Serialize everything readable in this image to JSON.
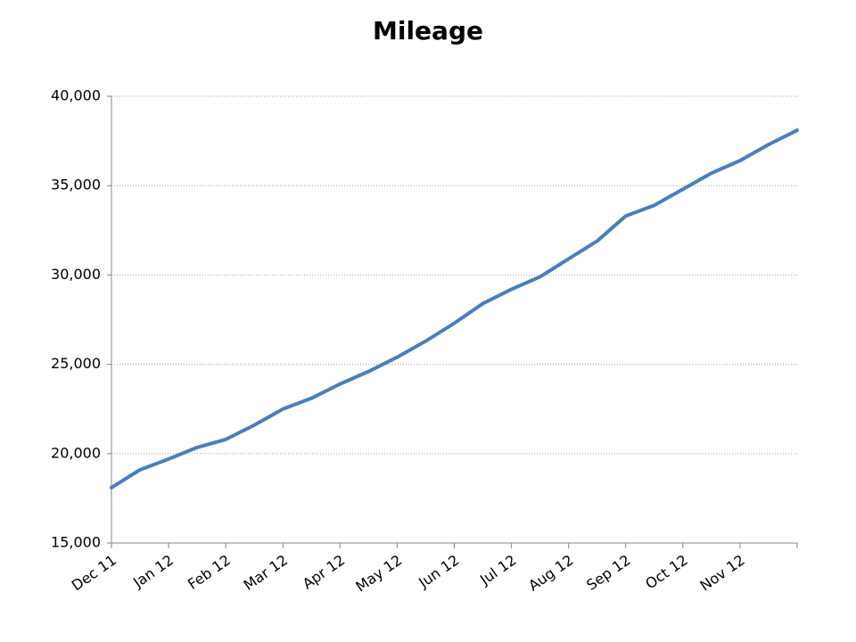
{
  "chart_data": {
    "type": "line",
    "title": "Mileage",
    "categories": [
      "Dec 11",
      null,
      "Jan 12",
      null,
      "Feb 12",
      null,
      "Mar 12",
      null,
      "Apr 12",
      null,
      "May 12",
      null,
      "Jun 12",
      null,
      "Jul 12",
      null,
      "Aug 12",
      null,
      "Sep 12",
      null,
      "Oct 12",
      null,
      "Nov 12",
      null,
      null
    ],
    "values": [
      18100,
      19100,
      19700,
      20350,
      20800,
      21600,
      22500,
      23100,
      23900,
      24600,
      25400,
      26300,
      27300,
      28400,
      29200,
      29900,
      30900,
      31900,
      33300,
      33900,
      34800,
      35700,
      36400,
      37300,
      38100
    ],
    "color": "#4a7ebb",
    "ylim": [
      15000,
      40000
    ],
    "yticks": [
      {
        "value": 15000,
        "label": "15,000"
      },
      {
        "value": 20000,
        "label": "20,000"
      },
      {
        "value": 25000,
        "label": "25,000"
      },
      {
        "value": 30000,
        "label": "30,000"
      },
      {
        "value": 35000,
        "label": "35,000"
      },
      {
        "value": 40000,
        "label": "40,000"
      }
    ],
    "grid": true
  }
}
